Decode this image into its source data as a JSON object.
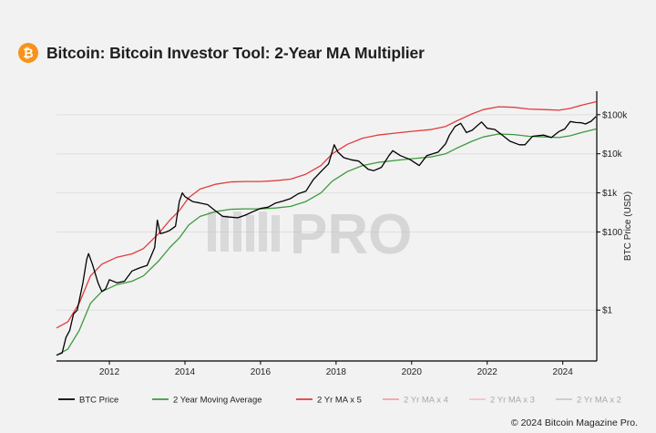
{
  "header": {
    "title": "Bitcoin: Bitcoin Investor Tool: 2-Year MA Multiplier",
    "logo_icon": "bitcoin-icon",
    "logo_glyph": "₿"
  },
  "footer": {
    "copyright": "© 2024 Bitcoin Magazine Pro."
  },
  "watermark": {
    "text": "PRO"
  },
  "colors": {
    "price": "#000000",
    "ma": "#3d9a3d",
    "ma_x5": "#e23b3b",
    "ma_x4": "#f1a3a3",
    "ma_x3": "#f6c2c2",
    "ma_x2": "#c8c8c8",
    "bitcoin_orange": "#f7931a"
  },
  "chart_data": {
    "type": "line",
    "title": "Bitcoin: Bitcoin Investor Tool: 2-Year MA Multiplier",
    "ylabel": "BTC Price (USD)",
    "yscale": "log",
    "xlim": [
      2010.6,
      2024.9
    ],
    "ylim": [
      0.05,
      400000
    ],
    "grid": true,
    "x_ticks": [
      2012,
      2014,
      2016,
      2018,
      2020,
      2022,
      2024
    ],
    "y_ticks": [
      {
        "value": 1,
        "label": "$1"
      },
      {
        "value": 100,
        "label": "$100"
      },
      {
        "value": 1000,
        "label": "$1k"
      },
      {
        "value": 10000,
        "label": "$10k"
      },
      {
        "value": 100000,
        "label": "$100k"
      }
    ],
    "legend_position": "bottom",
    "series": [
      {
        "name": "BTC Price",
        "color_key": "price",
        "points": [
          [
            2010.6,
            0.07
          ],
          [
            2010.75,
            0.08
          ],
          [
            2010.85,
            0.2
          ],
          [
            2010.95,
            0.3
          ],
          [
            2011.05,
            0.8
          ],
          [
            2011.15,
            1
          ],
          [
            2011.3,
            5
          ],
          [
            2011.4,
            20
          ],
          [
            2011.45,
            28
          ],
          [
            2011.55,
            15
          ],
          [
            2011.7,
            5
          ],
          [
            2011.8,
            3
          ],
          [
            2011.9,
            3.5
          ],
          [
            2012.0,
            6
          ],
          [
            2012.2,
            5
          ],
          [
            2012.4,
            5.5
          ],
          [
            2012.6,
            10
          ],
          [
            2012.8,
            12
          ],
          [
            2013.0,
            14
          ],
          [
            2013.2,
            40
          ],
          [
            2013.27,
            200
          ],
          [
            2013.35,
            90
          ],
          [
            2013.5,
            100
          ],
          [
            2013.6,
            110
          ],
          [
            2013.75,
            140
          ],
          [
            2013.85,
            600
          ],
          [
            2013.93,
            1000
          ],
          [
            2014.0,
            800
          ],
          [
            2014.2,
            600
          ],
          [
            2014.4,
            550
          ],
          [
            2014.6,
            500
          ],
          [
            2014.8,
            350
          ],
          [
            2015.0,
            250
          ],
          [
            2015.2,
            240
          ],
          [
            2015.4,
            230
          ],
          [
            2015.6,
            270
          ],
          [
            2015.8,
            330
          ],
          [
            2016.0,
            400
          ],
          [
            2016.2,
            430
          ],
          [
            2016.4,
            550
          ],
          [
            2016.6,
            620
          ],
          [
            2016.8,
            720
          ],
          [
            2017.0,
            950
          ],
          [
            2017.2,
            1100
          ],
          [
            2017.4,
            2200
          ],
          [
            2017.6,
            3500
          ],
          [
            2017.8,
            5500
          ],
          [
            2017.95,
            17000
          ],
          [
            2018.05,
            11000
          ],
          [
            2018.2,
            8000
          ],
          [
            2018.4,
            7000
          ],
          [
            2018.6,
            6500
          ],
          [
            2018.85,
            4000
          ],
          [
            2019.0,
            3700
          ],
          [
            2019.2,
            4500
          ],
          [
            2019.4,
            9000
          ],
          [
            2019.5,
            12000
          ],
          [
            2019.7,
            9000
          ],
          [
            2019.95,
            7200
          ],
          [
            2020.2,
            5000
          ],
          [
            2020.4,
            9000
          ],
          [
            2020.7,
            11000
          ],
          [
            2020.9,
            18000
          ],
          [
            2021.0,
            30000
          ],
          [
            2021.15,
            50000
          ],
          [
            2021.3,
            60000
          ],
          [
            2021.45,
            35000
          ],
          [
            2021.6,
            40000
          ],
          [
            2021.85,
            65000
          ],
          [
            2022.0,
            45000
          ],
          [
            2022.2,
            42000
          ],
          [
            2022.4,
            30000
          ],
          [
            2022.6,
            21000
          ],
          [
            2022.85,
            17000
          ],
          [
            2023.0,
            17000
          ],
          [
            2023.2,
            28000
          ],
          [
            2023.5,
            30000
          ],
          [
            2023.7,
            26000
          ],
          [
            2023.9,
            37000
          ],
          [
            2024.05,
            43000
          ],
          [
            2024.2,
            67000
          ],
          [
            2024.35,
            63000
          ],
          [
            2024.5,
            62000
          ],
          [
            2024.6,
            58000
          ],
          [
            2024.75,
            68000
          ],
          [
            2024.88,
            90000
          ]
        ]
      },
      {
        "name": "2 Year Moving Average",
        "color_key": "ma",
        "points": [
          [
            2010.6,
            0.07
          ],
          [
            2010.9,
            0.1
          ],
          [
            2011.2,
            0.3
          ],
          [
            2011.5,
            1.5
          ],
          [
            2011.8,
            3
          ],
          [
            2012.2,
            4.5
          ],
          [
            2012.6,
            5.5
          ],
          [
            2012.9,
            7.5
          ],
          [
            2013.3,
            18
          ],
          [
            2013.6,
            40
          ],
          [
            2013.85,
            70
          ],
          [
            2014.1,
            150
          ],
          [
            2014.4,
            250
          ],
          [
            2014.8,
            330
          ],
          [
            2015.2,
            380
          ],
          [
            2015.6,
            390
          ],
          [
            2016.0,
            390
          ],
          [
            2016.4,
            410
          ],
          [
            2016.8,
            450
          ],
          [
            2017.2,
            600
          ],
          [
            2017.6,
            1000
          ],
          [
            2017.9,
            2000
          ],
          [
            2018.3,
            3500
          ],
          [
            2018.7,
            5000
          ],
          [
            2019.1,
            6000
          ],
          [
            2019.6,
            6800
          ],
          [
            2020.0,
            7500
          ],
          [
            2020.5,
            8300
          ],
          [
            2020.9,
            10000
          ],
          [
            2021.2,
            14000
          ],
          [
            2021.6,
            21000
          ],
          [
            2021.9,
            27000
          ],
          [
            2022.3,
            32000
          ],
          [
            2022.7,
            31000
          ],
          [
            2023.1,
            28000
          ],
          [
            2023.5,
            27000
          ],
          [
            2023.9,
            26000
          ],
          [
            2024.2,
            29000
          ],
          [
            2024.5,
            35000
          ],
          [
            2024.88,
            43000
          ]
        ]
      },
      {
        "name": "2 Yr MA x 5",
        "color_key": "ma_x5",
        "multiplier_of": "2 Year Moving Average",
        "factor": 5
      },
      {
        "name": "2 Yr MA x 4",
        "color_key": "ma_x4",
        "legend_only": true
      },
      {
        "name": "2 Yr MA x 3",
        "color_key": "ma_x3",
        "legend_only": true
      },
      {
        "name": "2 Yr MA x 2",
        "color_key": "ma_x2",
        "legend_only": true
      }
    ]
  }
}
